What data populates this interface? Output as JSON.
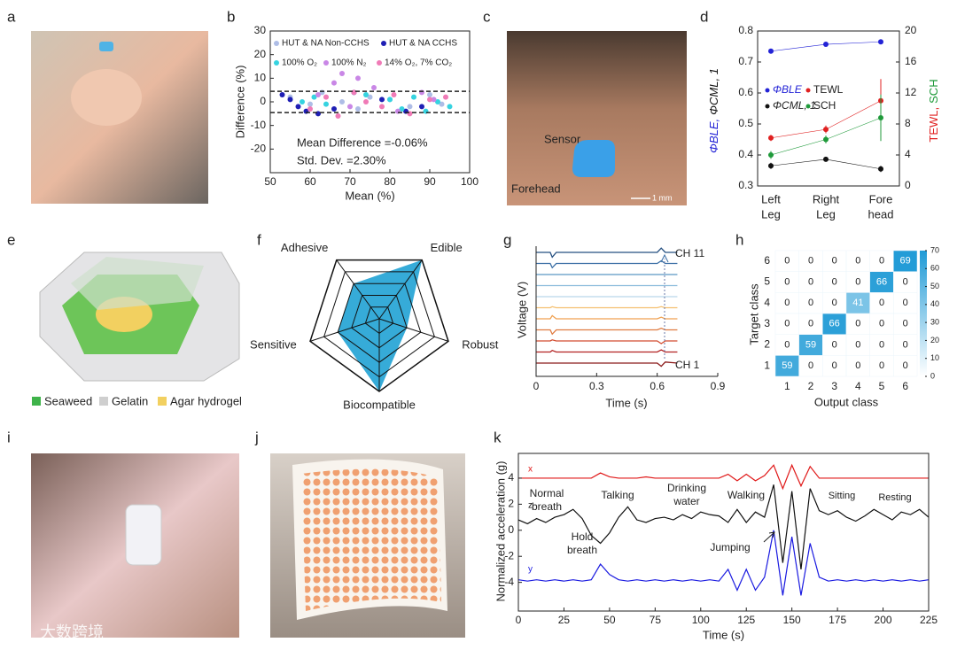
{
  "figure": {
    "panel_labels": [
      "a",
      "b",
      "c",
      "d",
      "e",
      "f",
      "g",
      "h",
      "i",
      "j",
      "k"
    ],
    "c_labels": [
      "Sensor",
      "Forehead",
      "1 mm"
    ],
    "e_legend": [
      "Seaweed",
      "Gelatin",
      "Agar hydrogel"
    ],
    "watermark": "大数跨境"
  },
  "chart_data": [
    {
      "type": "scatter",
      "xlabel": "Mean (%)",
      "ylabel": "Difference (%)",
      "xlim": [
        50,
        100
      ],
      "ylim": [
        -30,
        30
      ],
      "xticks": [
        50,
        60,
        70,
        80,
        90,
        100
      ],
      "yticks": [
        -20,
        -10,
        0,
        10,
        20,
        30
      ],
      "limits": [
        4.45,
        -4.57
      ],
      "annotations": [
        "Mean Difference =-0.06%",
        "Std. Dev. =2.30%"
      ],
      "series": [
        {
          "name": "HUT & NA Non-CCHS",
          "color": "#aebde6",
          "x": [
            55,
            60,
            63,
            68,
            72,
            75,
            80,
            85,
            90,
            93
          ],
          "y": [
            2,
            -1,
            4,
            0,
            -3,
            2,
            1,
            -2,
            3,
            -1
          ]
        },
        {
          "name": "HUT & NA CCHS",
          "color": "#1f1fb4",
          "x": [
            53,
            55,
            57,
            59,
            62,
            66,
            71,
            78,
            84,
            88
          ],
          "y": [
            3,
            1,
            -2,
            -4,
            -5,
            -3,
            4,
            1,
            -4,
            -2
          ]
        },
        {
          "name": "100% O₂",
          "color": "#36d3e0",
          "x": [
            58,
            61,
            64,
            74,
            80,
            83,
            86,
            89,
            92,
            95
          ],
          "y": [
            0,
            2,
            -1,
            3,
            1,
            -3,
            2,
            -4,
            0,
            -2
          ]
        },
        {
          "name": "100% N₂",
          "color": "#c987e6",
          "x": [
            62,
            66,
            68,
            70,
            72,
            76,
            82,
            88,
            91
          ],
          "y": [
            3,
            8,
            12,
            -2,
            10,
            6,
            -4,
            4,
            1
          ]
        },
        {
          "name": "14% O₂, 7% CO₂",
          "color": "#f07bb7",
          "x": [
            60,
            64,
            67,
            71,
            74,
            78,
            81,
            85,
            90,
            94
          ],
          "y": [
            -3,
            2,
            -6,
            4,
            0,
            -2,
            3,
            -5,
            1,
            2
          ]
        }
      ]
    },
    {
      "type": "line",
      "categories": [
        [
          "Left",
          "Leg"
        ],
        [
          "Right",
          "Leg"
        ],
        [
          "Fore",
          "head"
        ]
      ],
      "ylim": [
        0.3,
        0.8
      ],
      "yticks": [
        0.3,
        0.4,
        0.5,
        0.6,
        0.7,
        0.8
      ],
      "y2lim": [
        0,
        20
      ],
      "y2ticks": [
        0,
        4,
        8,
        12,
        16,
        20
      ],
      "ylabel": [
        "ΦBLE,",
        "ΦCML, 1"
      ],
      "y2label": [
        "TEWL,",
        "SCH"
      ],
      "series": [
        {
          "name": "ΦBLE",
          "color": "#2323d6",
          "values": [
            0.735,
            0.757,
            0.765
          ],
          "errors": [
            0.004,
            0.004,
            0.006
          ]
        },
        {
          "name": "TEWL",
          "color": "#e02020",
          "axis": "y2",
          "values": [
            6.2,
            7.3,
            11
          ],
          "errors": [
            0.4,
            0.5,
            2.8
          ]
        },
        {
          "name": "ΦCML, 1",
          "color": "#111111",
          "values": [
            0.365,
            0.386,
            0.355
          ],
          "errors": [
            0.01,
            0.005,
            0.01
          ]
        },
        {
          "name": "SCH",
          "color": "#1f9a3a",
          "axis": "y2",
          "values": [
            4,
            6,
            8.8
          ],
          "errors": [
            0.5,
            0.5,
            3
          ]
        }
      ]
    },
    {
      "type": "radar",
      "axes": [
        "Biocompatible",
        "Sensitive",
        "Adhesive",
        "Edible",
        "Robust"
      ],
      "values": [
        5,
        3,
        3,
        5,
        2
      ],
      "rlim": [
        0,
        5
      ],
      "rticks": [
        1,
        2,
        3,
        4,
        5
      ],
      "color": "#2ba6d6"
    },
    {
      "type": "line",
      "xlabel": "Time (s)",
      "ylabel": "Voltage (V)",
      "xlim": [
        0,
        0.9
      ],
      "xticks": [
        0,
        0.3,
        0.6,
        0.9
      ],
      "ylim": [
        -1,
        1
      ],
      "labels": [
        "CH 1",
        "CH 11"
      ],
      "x": [
        0,
        0.07,
        0.08,
        0.1,
        0.6,
        0.62,
        0.64,
        0.7
      ],
      "series": [
        {
          "color": "#8b1a1a",
          "values": [
            0,
            0,
            0,
            0,
            0,
            -0.6,
            0.2,
            0
          ]
        },
        {
          "color": "#b22222",
          "values": [
            0,
            0,
            0.3,
            0,
            0,
            0.4,
            0,
            0
          ]
        },
        {
          "color": "#d24c30",
          "values": [
            0,
            0,
            0.2,
            0,
            0,
            -0.5,
            0,
            0
          ]
        },
        {
          "color": "#e07b40",
          "values": [
            0,
            0,
            -0.8,
            0,
            0,
            0.3,
            0,
            0
          ]
        },
        {
          "color": "#f0a050",
          "values": [
            0,
            0,
            0.6,
            0,
            0,
            0.3,
            0,
            0
          ]
        },
        {
          "color": "#f5c070",
          "values": [
            0,
            0,
            0.2,
            0,
            0,
            0.2,
            0,
            0
          ]
        },
        {
          "color": "#b9d7ea",
          "values": [
            0,
            0,
            0,
            0,
            0,
            0,
            0,
            0
          ]
        },
        {
          "color": "#8cbcdc",
          "values": [
            0,
            0,
            0,
            0,
            0,
            0,
            0,
            0
          ]
        },
        {
          "color": "#5a96c4",
          "values": [
            0,
            0,
            0,
            0,
            0,
            0,
            0,
            0
          ]
        },
        {
          "color": "#3a6ea5",
          "values": [
            0,
            0,
            -0.8,
            0,
            0,
            0.5,
            0,
            0
          ]
        },
        {
          "color": "#244f80",
          "values": [
            0,
            0,
            -0.9,
            0,
            0,
            0.8,
            0,
            0
          ]
        }
      ]
    },
    {
      "type": "heatmap",
      "xlabel": "Output class",
      "ylabel": "Target class",
      "xcategories": [
        1,
        2,
        3,
        4,
        5,
        6
      ],
      "ycategories": [
        1,
        2,
        3,
        4,
        5,
        6
      ],
      "values": [
        [
          59,
          0,
          0,
          0,
          0,
          0
        ],
        [
          0,
          59,
          0,
          0,
          0,
          0
        ],
        [
          0,
          0,
          66,
          0,
          0,
          0
        ],
        [
          0,
          0,
          0,
          41,
          0,
          0
        ],
        [
          0,
          0,
          0,
          0,
          66,
          0
        ],
        [
          0,
          0,
          0,
          0,
          0,
          69
        ]
      ],
      "clim": [
        0,
        70
      ],
      "cticks": [
        0,
        10,
        20,
        30,
        40,
        50,
        60,
        70
      ],
      "color": "#1f9ad6"
    },
    {
      "type": "line",
      "xlabel": "Time (s)",
      "ylabel": "Normalized acceleration (g)",
      "xlim": [
        0,
        225
      ],
      "xticks": [
        0,
        25,
        50,
        75,
        100,
        125,
        150,
        175,
        200,
        225
      ],
      "ylim": [
        -6.2,
        5.9
      ],
      "yticks": [
        -4,
        -2,
        0,
        2,
        4
      ],
      "x": [
        0,
        5,
        10,
        15,
        20,
        25,
        30,
        35,
        40,
        45,
        50,
        55,
        60,
        65,
        70,
        75,
        80,
        85,
        90,
        95,
        100,
        105,
        110,
        115,
        120,
        125,
        130,
        135,
        140,
        145,
        150,
        155,
        160,
        165,
        170,
        175,
        180,
        185,
        190,
        195,
        200,
        205,
        210,
        215,
        220,
        225
      ],
      "series": [
        {
          "name": "x",
          "color": "#e01818",
          "values": [
            4,
            4,
            4,
            4,
            4,
            4,
            4,
            4,
            4,
            4.4,
            4.1,
            4,
            4,
            4,
            4.1,
            4,
            4,
            4,
            4,
            4,
            4,
            4,
            4,
            4.3,
            3.8,
            4.3,
            3.8,
            4.2,
            5,
            3.2,
            5,
            3.4,
            4.9,
            4,
            4,
            4,
            4,
            4,
            4,
            4,
            4,
            4,
            4,
            4,
            4,
            4
          ]
        },
        {
          "name": "z",
          "color": "#111111",
          "values": [
            0.8,
            0.5,
            0.9,
            0.6,
            1,
            1.2,
            1.6,
            0.9,
            -0.4,
            -1,
            -0.2,
            1,
            1.8,
            0.8,
            0.6,
            0.9,
            1,
            0.8,
            1.2,
            0.9,
            1.4,
            1.2,
            1.1,
            0.6,
            1.6,
            0.6,
            1.4,
            1,
            3.5,
            -2.5,
            3,
            -3,
            3.2,
            1.5,
            1.2,
            1.5,
            1,
            0.7,
            1.1,
            1.6,
            1.2,
            0.8,
            1.4,
            1.2,
            1.6,
            1
          ]
        },
        {
          "name": "y",
          "color": "#1a1ae0",
          "values": [
            -3.8,
            -3.9,
            -3.8,
            -3.9,
            -3.8,
            -3.9,
            -3.8,
            -3.9,
            -3.8,
            -2.6,
            -3.4,
            -3.8,
            -3.9,
            -3.8,
            -3.9,
            -3.8,
            -3.9,
            -3.8,
            -3.9,
            -3.8,
            -3.9,
            -3.8,
            -3.9,
            -3,
            -4.6,
            -3,
            -4.6,
            -3.6,
            0,
            -5,
            -0.5,
            -5,
            -1,
            -3.6,
            -3.9,
            -3.8,
            -3.9,
            -3.8,
            -3.9,
            -3.8,
            -3.9,
            -3.8,
            -3.9,
            -3.8,
            -3.9,
            -3.8
          ]
        }
      ],
      "annotations": [
        [
          "Normal",
          "breath"
        ],
        [
          "Talking"
        ],
        [
          "Drinking",
          "water"
        ],
        [
          "Walking"
        ],
        [
          "Sitting"
        ],
        [
          "Resting"
        ],
        [
          "Hold",
          "breath"
        ],
        [
          "Jumping"
        ]
      ]
    }
  ]
}
